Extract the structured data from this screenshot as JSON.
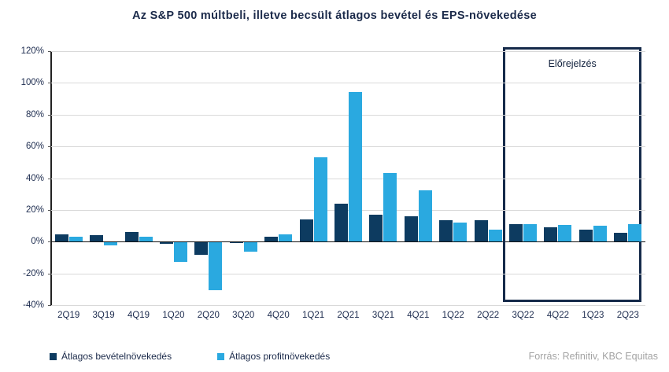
{
  "title": "Az S&P 500 múltbeli, illetve becsült átlagos bevétel és EPS-növekedése",
  "forecast_label": "Előrejelzés",
  "source": "Forrás: Refinitiv, KBC Equitas",
  "colors": {
    "revenue_bar": "#0d3b60",
    "profit_bar": "#2aa9e0",
    "title_text": "#1b2a4a",
    "gridline": "#d9d9d9",
    "axis_line": "#111111",
    "forecast_border": "#152a4a",
    "source_text": "#a3a3a3"
  },
  "chart_data": {
    "type": "bar",
    "title": "Az S&P 500 múltbeli, illetve becsült átlagos bevétel és EPS-növekedése",
    "categories": [
      "2Q19",
      "3Q19",
      "4Q19",
      "1Q20",
      "2Q20",
      "3Q20",
      "4Q20",
      "1Q21",
      "2Q21",
      "3Q21",
      "4Q21",
      "1Q22",
      "2Q22",
      "3Q22",
      "4Q22",
      "1Q23",
      "2Q23"
    ],
    "series": [
      {
        "key": "revenue",
        "name": "Átlagos bevételnövekedés",
        "color": "#0d3b60",
        "values": [
          4.5,
          4,
          6,
          -1,
          -8,
          -0.5,
          3,
          14,
          24,
          17,
          16,
          13.5,
          13.5,
          11,
          9,
          7.5,
          5.5
        ]
      },
      {
        "key": "profit",
        "name": "Átlagos profitnövekedés",
        "color": "#2aa9e0",
        "values": [
          3,
          -2,
          3,
          -12.5,
          -30,
          -6,
          4.5,
          53,
          94,
          43,
          32.5,
          12,
          7.5,
          11,
          10.5,
          10,
          11
        ]
      }
    ],
    "xlabel": "",
    "ylabel": "",
    "ylim": [
      -40,
      120
    ],
    "ytick_step": 20,
    "ytick_format": "percent",
    "grid": "horizontal",
    "legend_position": "bottom-left",
    "forecast_start_index": 13,
    "annotation": "Előrejelzés"
  }
}
